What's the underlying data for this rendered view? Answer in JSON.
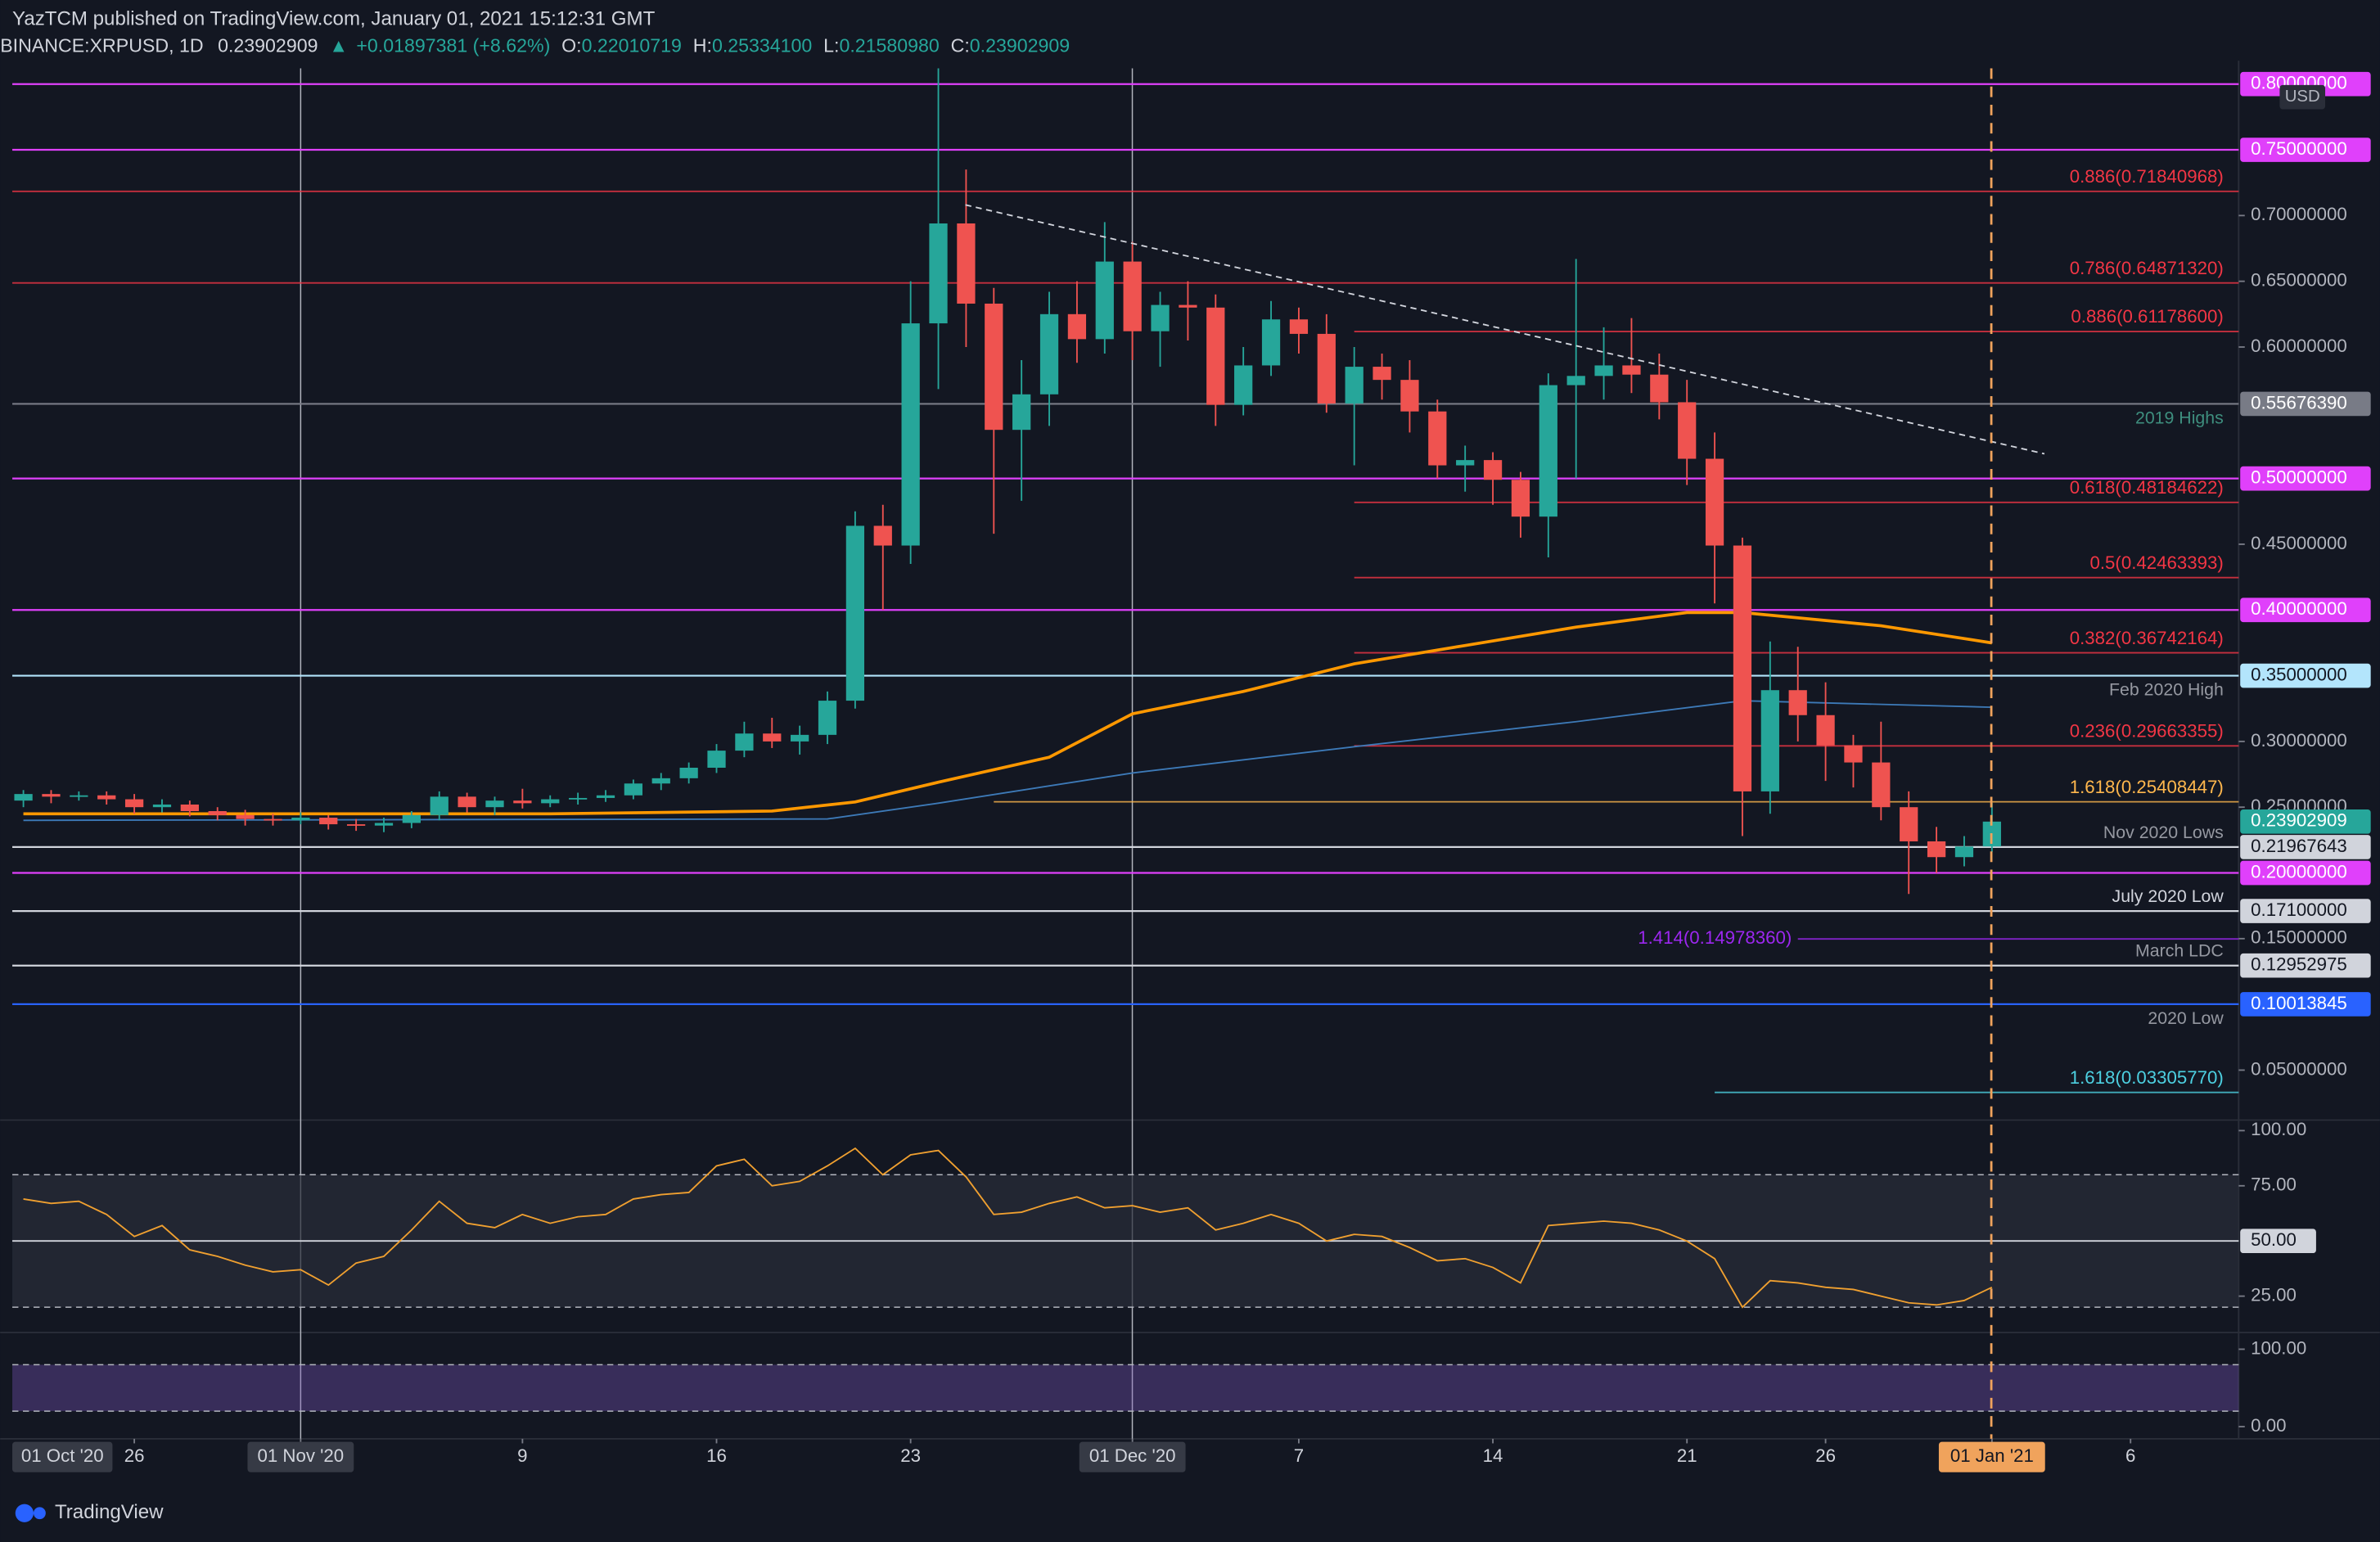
{
  "chart_data": {
    "type": "candlestick",
    "header": {
      "published": "YazTCM published on TradingView.com, January 01, 2021 15:12:31 GMT",
      "symbol": "BINANCE:XRPUSD, 1D",
      "last": "0.23902909",
      "arrow": "▲",
      "change": "+0.01897381 (+8.62%)",
      "o": "O:",
      "o_val": "0.22010719",
      "h": "H:",
      "h_val": "0.25334100",
      "l": "L:",
      "l_val": "0.21580980",
      "c": "C:",
      "c_val": "0.23902909"
    },
    "currency": "USD",
    "corner_label": "01 Oct '20",
    "brand": "TradingView",
    "x": [
      "2020-10-22",
      "2020-10-23",
      "2020-10-24",
      "2020-10-25",
      "2020-10-26",
      "2020-10-27",
      "2020-10-28",
      "2020-10-29",
      "2020-10-30",
      "2020-10-31",
      "2020-11-01",
      "2020-11-02",
      "2020-11-03",
      "2020-11-04",
      "2020-11-05",
      "2020-11-06",
      "2020-11-07",
      "2020-11-08",
      "2020-11-09",
      "2020-11-10",
      "2020-11-11",
      "2020-11-12",
      "2020-11-13",
      "2020-11-14",
      "2020-11-15",
      "2020-11-16",
      "2020-11-17",
      "2020-11-18",
      "2020-11-19",
      "2020-11-20",
      "2020-11-21",
      "2020-11-22",
      "2020-11-23",
      "2020-11-24",
      "2020-11-25",
      "2020-11-26",
      "2020-11-27",
      "2020-11-28",
      "2020-11-29",
      "2020-11-30",
      "2020-12-01",
      "2020-12-02",
      "2020-12-03",
      "2020-12-04",
      "2020-12-05",
      "2020-12-06",
      "2020-12-07",
      "2020-12-08",
      "2020-12-09",
      "2020-12-10",
      "2020-12-11",
      "2020-12-12",
      "2020-12-13",
      "2020-12-14",
      "2020-12-15",
      "2020-12-16",
      "2020-12-17",
      "2020-12-18",
      "2020-12-19",
      "2020-12-20",
      "2020-12-21",
      "2020-12-22",
      "2020-12-23",
      "2020-12-24",
      "2020-12-25",
      "2020-12-26",
      "2020-12-27",
      "2020-12-28",
      "2020-12-29",
      "2020-12-30",
      "2020-12-31",
      "2021-01-01"
    ],
    "open": [
      0.255,
      0.26,
      0.258,
      0.259,
      0.256,
      0.25,
      0.252,
      0.247,
      0.244,
      0.241,
      0.24,
      0.242,
      0.237,
      0.236,
      0.238,
      0.244,
      0.258,
      0.25,
      0.255,
      0.253,
      0.256,
      0.257,
      0.259,
      0.268,
      0.272,
      0.28,
      0.293,
      0.306,
      0.3,
      0.305,
      0.331,
      0.464,
      0.449,
      0.618,
      0.694,
      0.633,
      0.537,
      0.564,
      0.625,
      0.606,
      0.665,
      0.612,
      0.632,
      0.63,
      0.556,
      0.586,
      0.621,
      0.61,
      0.557,
      0.585,
      0.575,
      0.551,
      0.51,
      0.514,
      0.499,
      0.471,
      0.571,
      0.578,
      0.586,
      0.579,
      0.558,
      0.515,
      0.449,
      0.262,
      0.339,
      0.32,
      0.297,
      0.284,
      0.25,
      0.224,
      0.212,
      0.22010719
    ],
    "high": [
      0.263,
      0.263,
      0.262,
      0.262,
      0.26,
      0.256,
      0.255,
      0.25,
      0.248,
      0.245,
      0.246,
      0.244,
      0.241,
      0.242,
      0.247,
      0.262,
      0.261,
      0.258,
      0.264,
      0.259,
      0.261,
      0.263,
      0.271,
      0.276,
      0.284,
      0.298,
      0.315,
      0.318,
      0.312,
      0.338,
      0.475,
      0.48,
      0.65,
      0.812,
      0.735,
      0.645,
      0.59,
      0.642,
      0.65,
      0.695,
      0.68,
      0.642,
      0.65,
      0.64,
      0.6,
      0.635,
      0.63,
      0.625,
      0.6,
      0.595,
      0.59,
      0.56,
      0.525,
      0.52,
      0.505,
      0.58,
      0.667,
      0.615,
      0.622,
      0.595,
      0.575,
      0.535,
      0.455,
      0.376,
      0.372,
      0.345,
      0.305,
      0.315,
      0.262,
      0.235,
      0.228,
      0.253341
    ],
    "low": [
      0.25,
      0.253,
      0.255,
      0.252,
      0.245,
      0.246,
      0.243,
      0.24,
      0.236,
      0.236,
      0.237,
      0.233,
      0.232,
      0.231,
      0.234,
      0.24,
      0.246,
      0.244,
      0.249,
      0.25,
      0.252,
      0.254,
      0.256,
      0.263,
      0.268,
      0.276,
      0.288,
      0.295,
      0.29,
      0.298,
      0.325,
      0.4,
      0.435,
      0.568,
      0.6,
      0.458,
      0.483,
      0.54,
      0.588,
      0.595,
      0.59,
      0.585,
      0.605,
      0.54,
      0.548,
      0.578,
      0.595,
      0.55,
      0.51,
      0.56,
      0.535,
      0.5,
      0.49,
      0.48,
      0.455,
      0.44,
      0.5,
      0.56,
      0.565,
      0.545,
      0.495,
      0.405,
      0.228,
      0.245,
      0.3,
      0.27,
      0.265,
      0.24,
      0.184,
      0.2,
      0.205,
      0.2158098
    ],
    "close": [
      0.26,
      0.258,
      0.259,
      0.256,
      0.25,
      0.252,
      0.247,
      0.244,
      0.241,
      0.24,
      0.242,
      0.237,
      0.236,
      0.238,
      0.244,
      0.258,
      0.25,
      0.255,
      0.253,
      0.256,
      0.257,
      0.259,
      0.268,
      0.272,
      0.28,
      0.293,
      0.306,
      0.3,
      0.305,
      0.331,
      0.464,
      0.449,
      0.618,
      0.694,
      0.633,
      0.537,
      0.564,
      0.625,
      0.606,
      0.665,
      0.612,
      0.632,
      0.63,
      0.556,
      0.586,
      0.621,
      0.61,
      0.557,
      0.585,
      0.575,
      0.551,
      0.51,
      0.514,
      0.499,
      0.471,
      0.571,
      0.578,
      0.586,
      0.579,
      0.558,
      0.515,
      0.449,
      0.262,
      0.339,
      0.32,
      0.297,
      0.284,
      0.25,
      0.224,
      0.212,
      0.22005528,
      0.23902909
    ],
    "up_color": "#26a69a",
    "down_color": "#ef5350",
    "ma": [
      {
        "color": "#ff9800",
        "x": [
          "2020-10-22",
          "2020-11-10",
          "2020-11-18",
          "2020-11-21",
          "2020-11-24",
          "2020-11-28",
          "2020-12-01",
          "2020-12-05",
          "2020-12-09",
          "2020-12-13",
          "2020-12-17",
          "2020-12-21",
          "2020-12-23",
          "2020-12-28",
          "2021-01-01"
        ],
        "values": [
          0.245,
          0.245,
          0.247,
          0.254,
          0.269,
          0.288,
          0.321,
          0.338,
          0.359,
          0.373,
          0.387,
          0.398,
          0.398,
          0.388,
          0.375
        ]
      },
      {
        "color": "#3d7ab8",
        "x": [
          "2020-10-22",
          "2020-11-20",
          "2020-11-24",
          "2020-12-01",
          "2020-12-09",
          "2020-12-17",
          "2020-12-23",
          "2021-01-01"
        ],
        "values": [
          0.24,
          0.241,
          0.253,
          0.276,
          0.296,
          0.315,
          0.331,
          0.326
        ]
      }
    ],
    "xlim": [
      "2020-10-21T14:24:00Z",
      "2021-01-09T21:36:00Z"
    ],
    "ylim": [
      0.012,
      0.812
    ],
    "yticks": [
      {
        "value": 0.7,
        "label": "0.70000000"
      },
      {
        "value": 0.65,
        "label": "0.65000000"
      },
      {
        "value": 0.6,
        "label": "0.60000000"
      },
      {
        "value": 0.45,
        "label": "0.45000000"
      },
      {
        "value": 0.3,
        "label": "0.30000000"
      },
      {
        "value": 0.25,
        "label": "0.25000000"
      },
      {
        "value": 0.15,
        "label": "0.15000000"
      },
      {
        "value": 0.05,
        "label": "0.05000000"
      }
    ],
    "levels": [
      {
        "value": 0.8,
        "label": "0.80000000",
        "color": "#e040fb",
        "box": true
      },
      {
        "value": 0.75,
        "label": "0.75000000",
        "color": "#e040fb",
        "box": true
      },
      {
        "value": 0.71840968,
        "label": "0.886(0.71840968)",
        "color": "#f23645"
      },
      {
        "value": 0.6487132,
        "label": "0.786(0.64871320)",
        "color": "#f23645"
      },
      {
        "value": 0.611786,
        "label": "0.886(0.61178600)",
        "color": "#f23645",
        "start": "2020-12-09"
      },
      {
        "value": 0.5567639,
        "label": "0.55676390",
        "color": "#787b86",
        "box": true,
        "note": "2019 Highs",
        "note_side": "below",
        "note_color": "#3e8e7e"
      },
      {
        "value": 0.5,
        "label": "0.50000000",
        "color": "#e040fb",
        "box": true
      },
      {
        "value": 0.48184622,
        "label": "0.618(0.48184622)",
        "color": "#f23645",
        "start": "2020-12-09"
      },
      {
        "value": 0.42463393,
        "label": "0.5(0.42463393)",
        "color": "#f23645",
        "start": "2020-12-09"
      },
      {
        "value": 0.4,
        "label": "0.40000000",
        "color": "#e040fb",
        "box": true
      },
      {
        "value": 0.36742164,
        "label": "0.382(0.36742164)",
        "color": "#f23645",
        "start": "2020-12-09"
      },
      {
        "value": 0.35,
        "label": "0.35000000",
        "color": "#b3e5fc",
        "box": true,
        "note": "Feb 2020 High",
        "note_side": "below",
        "note_color": "#9598a1"
      },
      {
        "value": 0.29663355,
        "label": "0.236(0.29663355)",
        "color": "#f23645",
        "start": "2020-12-09"
      },
      {
        "value": 0.25408447,
        "label": "1.618(0.25408447)",
        "color": "#ffb74d",
        "start": "2020-11-26"
      },
      {
        "value": 0.21967643,
        "label": "0.21967643",
        "color": "#d1d4dc",
        "box": true,
        "note": "Nov 2020 Lows",
        "note_side": "above",
        "note_color": "#9598a1"
      },
      {
        "value": 0.2,
        "label": "0.20000000",
        "color": "#e040fb",
        "box": true
      },
      {
        "value": 0.171,
        "label": "0.17100000",
        "color": "#d1d4dc",
        "box": true,
        "note": "July 2020 Low",
        "note_side": "above",
        "note_color": "#d1d4dc"
      },
      {
        "value": 0.1497836,
        "label": "1.414(0.14978360)",
        "color": "#9c27f0",
        "start": "2020-12-25",
        "label_side": "left"
      },
      {
        "value": 0.12952975,
        "label": "0.12952975",
        "color": "#d1d4dc",
        "box": true,
        "note": "March LDC",
        "note_side": "above",
        "note_color": "#9598a1"
      },
      {
        "value": 0.10013845,
        "label": "0.10013845",
        "color": "#2962ff",
        "box": true,
        "note": "2020 Low",
        "note_side": "below",
        "note_color": "#9598a1"
      },
      {
        "value": 0.0330577,
        "label": "1.618(0.03305770)",
        "color": "#4dd0e1",
        "start": "2020-12-22"
      }
    ],
    "rsi": {
      "color": "#f0a030",
      "values": [
        69,
        67,
        68,
        62,
        52,
        57,
        46,
        43,
        39,
        36,
        37,
        30,
        40,
        43,
        55,
        68,
        58,
        56,
        62,
        58,
        61,
        62,
        69,
        71,
        72,
        84,
        87,
        75,
        77,
        84,
        92,
        80,
        89,
        91,
        79,
        62,
        63,
        67,
        70,
        65,
        66,
        63,
        65,
        55,
        58,
        62,
        58,
        50,
        53,
        52,
        47,
        41,
        42,
        38,
        31,
        57,
        58,
        59,
        58,
        55,
        50,
        42,
        20,
        32,
        31,
        29,
        28,
        25,
        22,
        21,
        23,
        29
      ],
      "ylim": [
        8.5,
        103.4
      ],
      "band": [
        20,
        80
      ],
      "yticks": [
        {
          "value": 100,
          "label": "100.00"
        },
        {
          "value": 75,
          "label": "75.00"
        },
        {
          "value": 50,
          "label": "50.00"
        },
        {
          "value": 25,
          "label": "25.00"
        }
      ]
    },
    "stoch": {
      "ylim": [
        -15.7,
        117.6
      ],
      "band": [
        20,
        80
      ],
      "yticks": [
        {
          "value": 100,
          "label": "100.00"
        },
        {
          "value": 0,
          "label": "0.00"
        }
      ]
    },
    "xticks": [
      {
        "value": "2020-10-26",
        "label": "26"
      },
      {
        "value": "2020-11-01",
        "label": "01 Nov '20",
        "box": "#363a45"
      },
      {
        "value": "2020-11-09",
        "label": "9"
      },
      {
        "value": "2020-11-16",
        "label": "16"
      },
      {
        "value": "2020-11-23",
        "label": "23"
      },
      {
        "value": "2020-12-01",
        "label": "01 Dec '20",
        "box": "#363a45"
      },
      {
        "value": "2020-12-07",
        "label": "7"
      },
      {
        "value": "2020-12-14",
        "label": "14"
      },
      {
        "value": "2020-12-21",
        "label": "21"
      },
      {
        "value": "2020-12-26",
        "label": "26"
      },
      {
        "value": "2021-01-01",
        "label": "01 Jan '21",
        "box": "#f0a35c"
      },
      {
        "value": "2021-01-06",
        "label": "6"
      }
    ]
  }
}
